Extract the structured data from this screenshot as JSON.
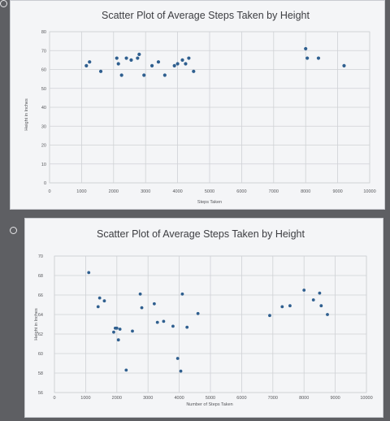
{
  "colors": {
    "marker": "#2f5f8f",
    "panel": "#f4f5f7",
    "background": "#5e5f63"
  },
  "chart_data": [
    {
      "type": "scatter",
      "title": "Scatter Plot of Average Steps Taken by Height",
      "xlabel": "Steps Taken",
      "ylabel": "Height in Inches",
      "xlim": [
        0,
        10000
      ],
      "ylim": [
        0,
        80
      ],
      "xticks": [
        "0",
        "1000",
        "2000",
        "3000",
        "4000",
        "5000",
        "6000",
        "7000",
        "8000",
        "9000",
        "10000"
      ],
      "yticks": [
        "0",
        "10",
        "20",
        "30",
        "40",
        "50",
        "60",
        "70",
        "80"
      ],
      "grid": true,
      "legend": "none",
      "points": [
        {
          "x": 1150,
          "y": 62
        },
        {
          "x": 1250,
          "y": 64
        },
        {
          "x": 1600,
          "y": 59
        },
        {
          "x": 2100,
          "y": 66
        },
        {
          "x": 2150,
          "y": 63
        },
        {
          "x": 2250,
          "y": 57
        },
        {
          "x": 2400,
          "y": 66
        },
        {
          "x": 2550,
          "y": 65
        },
        {
          "x": 2750,
          "y": 66
        },
        {
          "x": 2800,
          "y": 68
        },
        {
          "x": 2950,
          "y": 57
        },
        {
          "x": 3200,
          "y": 62
        },
        {
          "x": 3400,
          "y": 64
        },
        {
          "x": 3600,
          "y": 57
        },
        {
          "x": 3900,
          "y": 62
        },
        {
          "x": 4000,
          "y": 63
        },
        {
          "x": 4150,
          "y": 65
        },
        {
          "x": 4250,
          "y": 63
        },
        {
          "x": 4350,
          "y": 66
        },
        {
          "x": 4500,
          "y": 59
        },
        {
          "x": 8000,
          "y": 71
        },
        {
          "x": 8050,
          "y": 66
        },
        {
          "x": 8400,
          "y": 66
        },
        {
          "x": 9200,
          "y": 62
        }
      ]
    },
    {
      "type": "scatter",
      "title": "Scatter Plot of Average Steps Taken by Height",
      "xlabel": "Number of Steps Taken",
      "ylabel": "Height in Inches",
      "xlim": [
        0,
        10000
      ],
      "ylim": [
        56,
        70
      ],
      "xticks": [
        "0",
        "1000",
        "2000",
        "3000",
        "4000",
        "5000",
        "6000",
        "7000",
        "8000",
        "9000",
        "10000"
      ],
      "yticks": [
        "56",
        "58",
        "60",
        "62",
        "64",
        "66",
        "68",
        "70"
      ],
      "grid": true,
      "legend": "none",
      "points": [
        {
          "x": 1100,
          "y": 68.3
        },
        {
          "x": 1400,
          "y": 64.8
        },
        {
          "x": 1450,
          "y": 65.7
        },
        {
          "x": 1600,
          "y": 65.4
        },
        {
          "x": 1900,
          "y": 62.2
        },
        {
          "x": 1950,
          "y": 62.6
        },
        {
          "x": 2000,
          "y": 62.6
        },
        {
          "x": 2050,
          "y": 61.4
        },
        {
          "x": 2100,
          "y": 62.5
        },
        {
          "x": 2300,
          "y": 58.3
        },
        {
          "x": 2500,
          "y": 62.3
        },
        {
          "x": 2750,
          "y": 66.1
        },
        {
          "x": 2800,
          "y": 64.7
        },
        {
          "x": 3200,
          "y": 65.1
        },
        {
          "x": 3300,
          "y": 63.2
        },
        {
          "x": 3500,
          "y": 63.3
        },
        {
          "x": 3800,
          "y": 62.8
        },
        {
          "x": 3950,
          "y": 59.5
        },
        {
          "x": 4050,
          "y": 58.2
        },
        {
          "x": 4100,
          "y": 66.1
        },
        {
          "x": 4250,
          "y": 62.7
        },
        {
          "x": 4600,
          "y": 64.1
        },
        {
          "x": 6900,
          "y": 63.9
        },
        {
          "x": 7300,
          "y": 64.8
        },
        {
          "x": 7550,
          "y": 64.9
        },
        {
          "x": 8000,
          "y": 66.5
        },
        {
          "x": 8300,
          "y": 65.5
        },
        {
          "x": 8500,
          "y": 66.2
        },
        {
          "x": 8550,
          "y": 64.9
        },
        {
          "x": 8750,
          "y": 64.0
        }
      ]
    }
  ]
}
